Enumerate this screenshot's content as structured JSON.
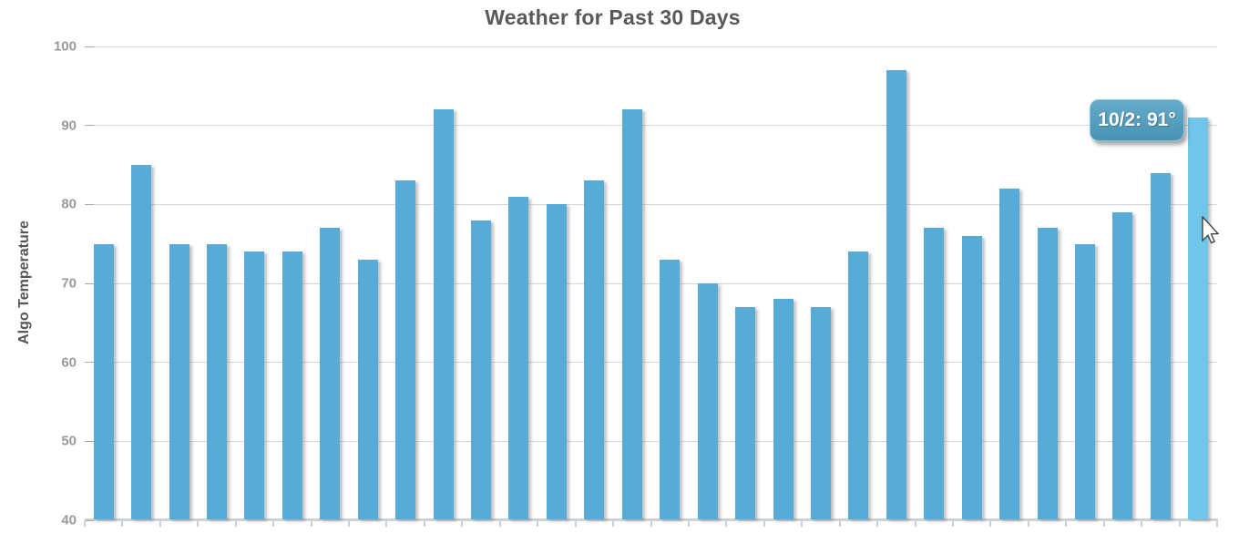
{
  "title": "Weather for Past 30 Days",
  "y_axis": {
    "label": "Algo Temperature",
    "tick_labels": [
      "100",
      "90",
      "80",
      "70",
      "60",
      "50",
      "40"
    ]
  },
  "tooltip": {
    "text": "10/2: 91°"
  },
  "icons": {
    "cursor": "arrow-pointer-icon"
  },
  "colors": {
    "bar": "#57abd6",
    "bar_highlighted": "#6fc6ea",
    "gridline": "#d6d6d6",
    "axis_line": "#c9d0d6",
    "title_text": "#595959",
    "axis_label_text": "#555555",
    "tick_text": "#999999",
    "tooltip_bg_top": "#64acca",
    "tooltip_bg_bottom": "#4a92b4",
    "tooltip_border": "#8ac3da",
    "tooltip_text": "#ffffff"
  },
  "chart_data": {
    "type": "bar",
    "title": "Weather for Past 30 Days",
    "xlabel": "",
    "ylabel": "Algo Temperature",
    "ylim": [
      40,
      100
    ],
    "y_ticks": [
      100,
      90,
      80,
      70,
      60,
      50,
      40
    ],
    "x_tick_labels_visible": false,
    "num_bars": 30,
    "values": [
      75,
      85,
      75,
      75,
      74,
      74,
      77,
      73,
      83,
      92,
      78,
      81,
      80,
      83,
      92,
      73,
      70,
      67,
      68,
      67,
      74,
      97,
      77,
      76,
      82,
      77,
      75,
      79,
      84,
      91
    ],
    "highlighted_index": 29,
    "highlighted_tooltip": "10/2: 91°",
    "grid": true,
    "legend": false
  }
}
